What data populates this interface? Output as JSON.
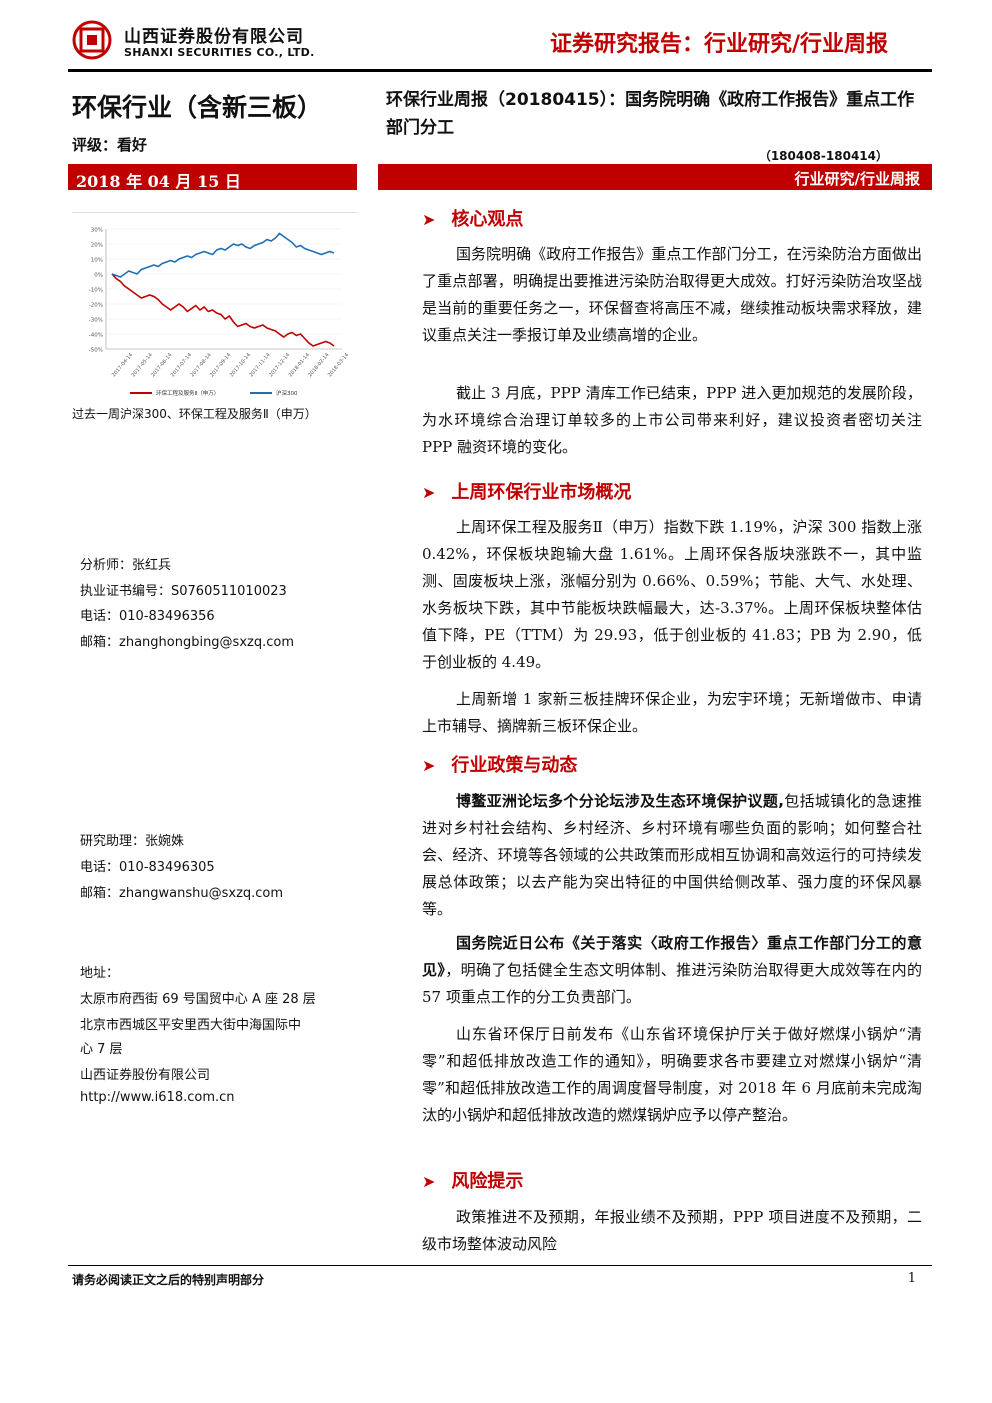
{
  "header": {
    "company_cn": "山西证券股份有限公司",
    "company_en": "SHANXI SECURITIES CO., LTD.",
    "report_type": "证券研究报告：行业研究/行业周报"
  },
  "sector": "环保行业（含新三板）",
  "rating": "评级：看好",
  "report_title": "环保行业周报（20180415）：国务院明确《政府工作报告》重点工作部门分工",
  "period": "（180408-180414）",
  "date": "2018 年 04 月 15 日",
  "red_bar_label": "行业研究/行业周报",
  "chart_caption": "过去一周沪深300、环保工程及服务Ⅱ（申万）",
  "chart_data": {
    "type": "line",
    "y_ticks": [
      "30%",
      "20%",
      "10%",
      "0%",
      "-10%",
      "-20%",
      "-30%",
      "-40%",
      "-50%"
    ],
    "ylim": [
      -50,
      30
    ],
    "x_ticks": [
      "2017-04-14",
      "2017-05-14",
      "2017-06-14",
      "2017-07-14",
      "2017-08-14",
      "2017-09-14",
      "2017-10-14",
      "2017-11-14",
      "2017-12-14",
      "2018-01-14",
      "2018-02-14",
      "2018-03-14"
    ],
    "series": [
      {
        "name": "环保工程及服务Ⅱ（申万）",
        "color": "#c00000",
        "values": [
          0,
          -3,
          -5,
          -8,
          -10,
          -12,
          -14,
          -16,
          -15,
          -14,
          -15,
          -17,
          -20,
          -22,
          -24,
          -22,
          -20,
          -22,
          -25,
          -23,
          -21,
          -24,
          -22,
          -25,
          -24,
          -26,
          -27,
          -30,
          -28,
          -32,
          -35,
          -34,
          -33,
          -35,
          -36,
          -35,
          -34,
          -36,
          -37,
          -38,
          -40,
          -42,
          -40,
          -39,
          -41,
          -40,
          -43,
          -46,
          -48,
          -47,
          -46,
          -45,
          -46,
          -48
        ]
      },
      {
        "name": "沪深300",
        "color": "#1f6fb4",
        "values": [
          0,
          -1,
          -2,
          0,
          2,
          1,
          0,
          3,
          4,
          5,
          6,
          5,
          7,
          8,
          9,
          8,
          10,
          11,
          12,
          11,
          13,
          14,
          15,
          14,
          13,
          16,
          17,
          16,
          18,
          20,
          19,
          20,
          18,
          17,
          19,
          20,
          21,
          23,
          22,
          24,
          27,
          25,
          23,
          21,
          18,
          19,
          17,
          16,
          15,
          14,
          13,
          14,
          15,
          14
        ]
      }
    ],
    "legend_position": "bottom"
  },
  "analysts": [
    {
      "text": "分析师：张红兵"
    },
    {
      "text": "执业证书编号：S0760511010023"
    },
    {
      "text": "电话：010-83496356"
    },
    {
      "text": "邮箱：zhanghongbing@sxzq.com"
    }
  ],
  "assistants": [
    {
      "text": "研究助理：张婉姝"
    },
    {
      "text": "电话：010-83496305"
    },
    {
      "text": "邮箱：zhangwanshu@sxzq.com"
    }
  ],
  "address": [
    {
      "text": "地址："
    },
    {
      "text": "太原市府西街 69 号国贸中心 A 座 28 层"
    },
    {
      "text": "北京市西城区平安里西大街中海国际中"
    },
    {
      "text": "心 7 层"
    },
    {
      "text": "山西证券股份有限公司"
    },
    {
      "text": "http://www.i618.com.cn"
    }
  ],
  "sections": {
    "s1": "核心观点",
    "s2": "上周环保行业市场概况",
    "s3": "行业政策与动态",
    "s4": "风险提示"
  },
  "paragraphs": {
    "p1": "国务院明确《政府工作报告》重点工作部门分工，在污染防治方面做出了重点部署，明确提出要推进污染防治取得更大成效。打好污染防治攻坚战是当前的重要任务之一，环保督查将高压不减，继续推动板块需求释放，建议重点关注一季报订单及业绩高增的企业。",
    "p2": "截止 3 月底，PPP 清库工作已结束，PPP 进入更加规范的发展阶段，为水环境综合治理订单较多的上市公司带来利好，建议投资者密切关注 PPP 融资环境的变化。",
    "p3": "上周环保工程及服务Ⅱ（申万）指数下跌 1.19%，沪深 300 指数上涨 0.42%，环保板块跑输大盘 1.61%。上周环保各版块涨跌不一，其中监测、固废板块上涨，涨幅分别为 0.66%、0.59%；节能、大气、水处理、水务板块下跌，其中节能板块跌幅最大，达-3.37%。上周环保板块整体估值下降，PE（TTM）为 29.93，低于创业板的 41.83；PB 为 2.90，低于创业板的 4.49。",
    "p4": "上周新增 1 家新三板挂牌环保企业，为宏宇环境；无新增做市、申请上市辅导、摘牌新三板环保企业。",
    "p5_bold": "博鳌亚洲论坛多个分论坛涉及生态环境保护议题,",
    "p5": "包括城镇化的急速推进对乡村社会结构、乡村经济、乡村环境有哪些负面的影响；如何整合社会、经济、环境等各领域的公共政策而形成相互协调和高效运行的可持续发展总体政策；以去产能为突出特征的中国供给侧改革、强力度的环保风暴等。",
    "p6_bold": "国务院近日公布《关于落实〈政府工作报告〉重点工作部门分工的意见》",
    "p6": "，明确了包括健全生态文明体制、推进污染防治取得更大成效等在内的 57 项重点工作的分工负责部门。",
    "p7": "山东省环保厅日前发布《山东省环境保护厅关于做好燃煤小锅炉“清零”和超低排放改造工作的通知》，明确要求各市要建立对燃煤小锅炉“清零”和超低排放改造工作的周调度督导制度，对 2018 年 6 月底前未完成淘汰的小锅炉和超低排放改造的燃煤锅炉应予以停产整治。",
    "p8": "政策推进不及预期，年报业绩不及预期，PPP 项目进度不及预期，二级市场整体波动风险"
  },
  "footer": {
    "note": "请务必阅读正文之后的特别声明部分",
    "page": "1"
  },
  "colors": {
    "brand_red": "#c00000"
  }
}
